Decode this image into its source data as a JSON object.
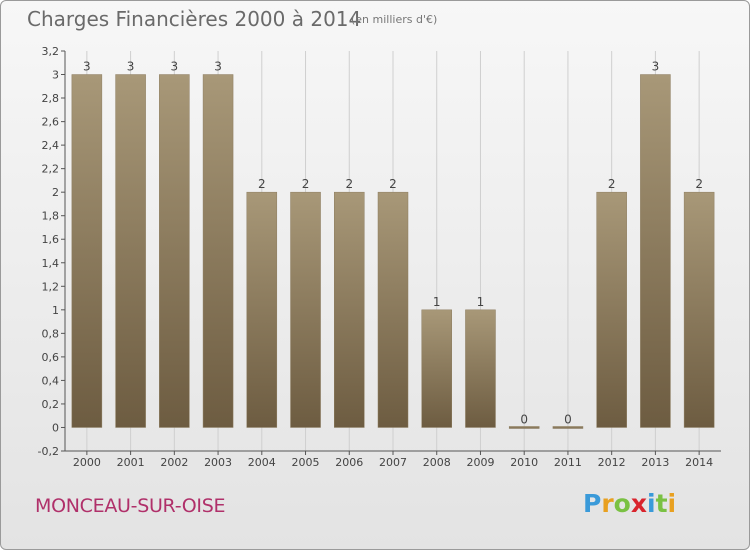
{
  "title": "Charges Financières 2000 à 2014",
  "subtitle": "(en milliers d'€)",
  "city": "MONCEAU-SUR-OISE",
  "logo": {
    "letters": [
      "P",
      "r",
      "o",
      "x",
      "i",
      "t",
      "i"
    ],
    "colors": [
      "#3a9ad9",
      "#e8a020",
      "#7ac143",
      "#d9242d",
      "#3a9ad9",
      "#7ac143",
      "#e8a020"
    ]
  },
  "colors": {
    "city": "#b0306a",
    "bar_top": "#a89878",
    "bar_bottom": "#6d5c41",
    "axis": "#555555",
    "grid": "#cfcfcf"
  },
  "chart_data": {
    "type": "bar",
    "categories": [
      "2000",
      "2001",
      "2002",
      "2003",
      "2004",
      "2005",
      "2006",
      "2007",
      "2008",
      "2009",
      "2010",
      "2011",
      "2012",
      "2013",
      "2014"
    ],
    "values": [
      3,
      3,
      3,
      3,
      2,
      2,
      2,
      2,
      1,
      1,
      0,
      0,
      2,
      3,
      2
    ],
    "data_labels": [
      "3",
      "3",
      "3",
      "3",
      "2",
      "2",
      "2",
      "2",
      "1",
      "1",
      "0",
      "0",
      "2",
      "3",
      "2"
    ],
    "ylim": [
      -0.2,
      3.2
    ],
    "yticks": [
      -0.2,
      0,
      0.2,
      0.4,
      0.6,
      0.8,
      1,
      1.2,
      1.4,
      1.6,
      1.8,
      2,
      2.2,
      2.4,
      2.6,
      2.8,
      3,
      3.2
    ],
    "ytick_labels": [
      "-0,2",
      "0",
      "0,2",
      "0,4",
      "0,6",
      "0,8",
      "1",
      "1,2",
      "1,4",
      "1,6",
      "1,8",
      "2",
      "2,2",
      "2,4",
      "2,6",
      "2,8",
      "3",
      "3,2"
    ],
    "grid": true
  }
}
